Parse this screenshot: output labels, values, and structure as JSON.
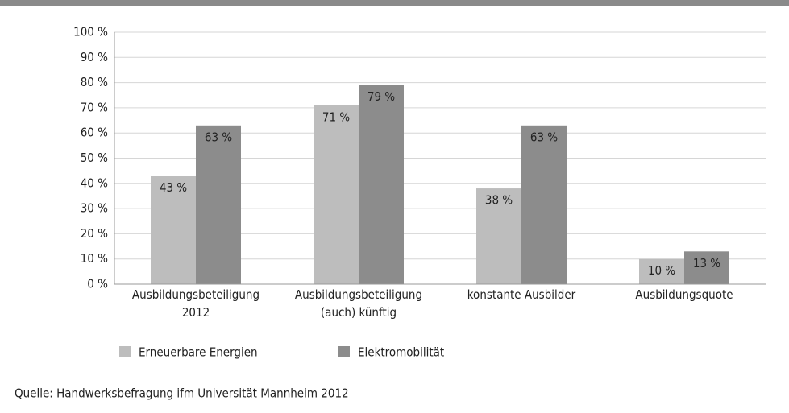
{
  "chart_data": {
    "type": "bar",
    "categories": [
      "Ausbildungsbeteiligung 2012",
      "Ausbildungsbeteiligung (auch) künftig",
      "konstante Ausbilder",
      "Ausbildungsquote"
    ],
    "series": [
      {
        "name": "Erneuerbare Energien",
        "color": "#bdbdbd",
        "values": [
          43,
          71,
          38,
          10
        ],
        "value_labels": [
          "43 %",
          "71 %",
          "38 %",
          "10 %"
        ]
      },
      {
        "name": "Elektromobilität",
        "color": "#8c8c8c",
        "values": [
          63,
          79,
          63,
          13
        ],
        "value_labels": [
          "63 %",
          "79 %",
          "63 %",
          "13 %"
        ]
      }
    ],
    "ylim": [
      0,
      100
    ],
    "yticks": [
      {
        "value": 0,
        "label": "0 %"
      },
      {
        "value": 10,
        "label": "10 %"
      },
      {
        "value": 20,
        "label": "20 %"
      },
      {
        "value": 30,
        "label": "30 %"
      },
      {
        "value": 40,
        "label": "40 %"
      },
      {
        "value": 50,
        "label": "50 %"
      },
      {
        "value": 60,
        "label": "60 %"
      },
      {
        "value": 70,
        "label": "70 %"
      },
      {
        "value": 80,
        "label": "80 %"
      },
      {
        "value": 90,
        "label": "90 %"
      },
      {
        "value": 100,
        "label": "100 %"
      }
    ],
    "grid": true,
    "source": "Quelle: Handwerksbefragung ifm Universität Mannheim 2012"
  }
}
